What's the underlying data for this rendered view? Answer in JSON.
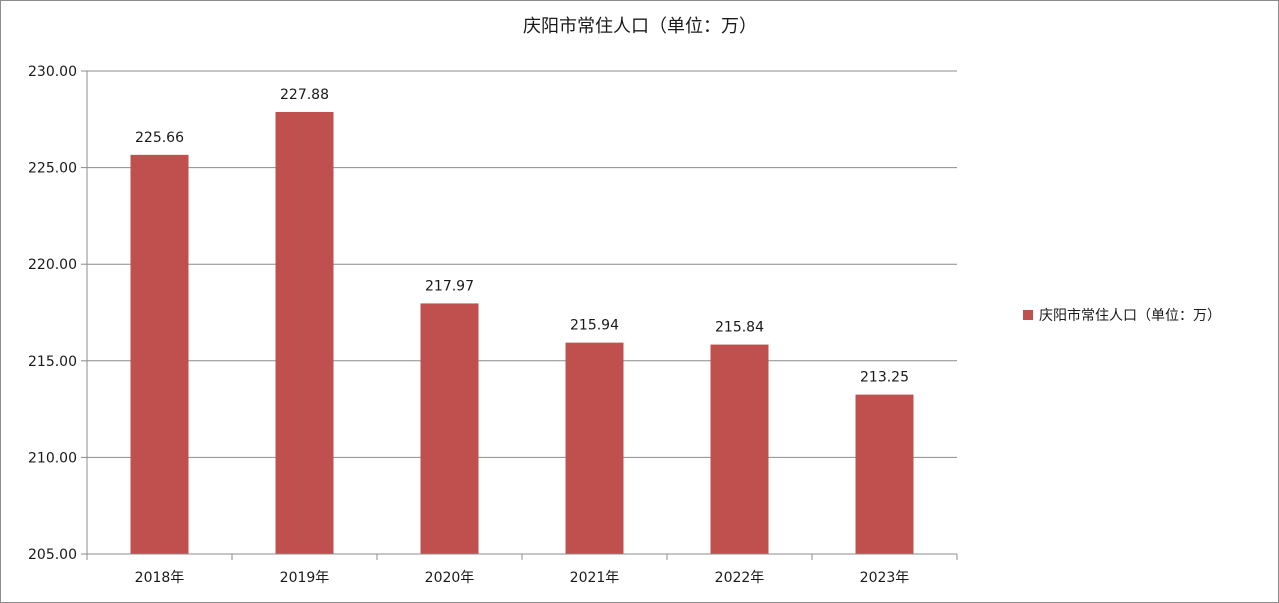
{
  "chart_data": {
    "type": "bar",
    "title": "庆阳市常住人口（单位：万）",
    "categories": [
      "2018年",
      "2019年",
      "2020年",
      "2021年",
      "2022年",
      "2023年"
    ],
    "series": [
      {
        "name": "庆阳市常住人口（单位：万）",
        "values": [
          225.66,
          227.88,
          217.97,
          215.94,
          215.84,
          213.25
        ],
        "value_labels": [
          "225.66",
          "227.88",
          "217.97",
          "215.94",
          "215.84",
          "213.25"
        ],
        "color": "#c0504d"
      }
    ],
    "yticks": [
      "205.00",
      "210.00",
      "215.00",
      "220.00",
      "225.00",
      "230.00"
    ],
    "ylim": [
      205,
      230
    ],
    "grid": true,
    "legend": "right"
  },
  "colors": {
    "grid": "#8c8c8c",
    "axis": "#8c8c8c",
    "bar": "#c0504d"
  }
}
